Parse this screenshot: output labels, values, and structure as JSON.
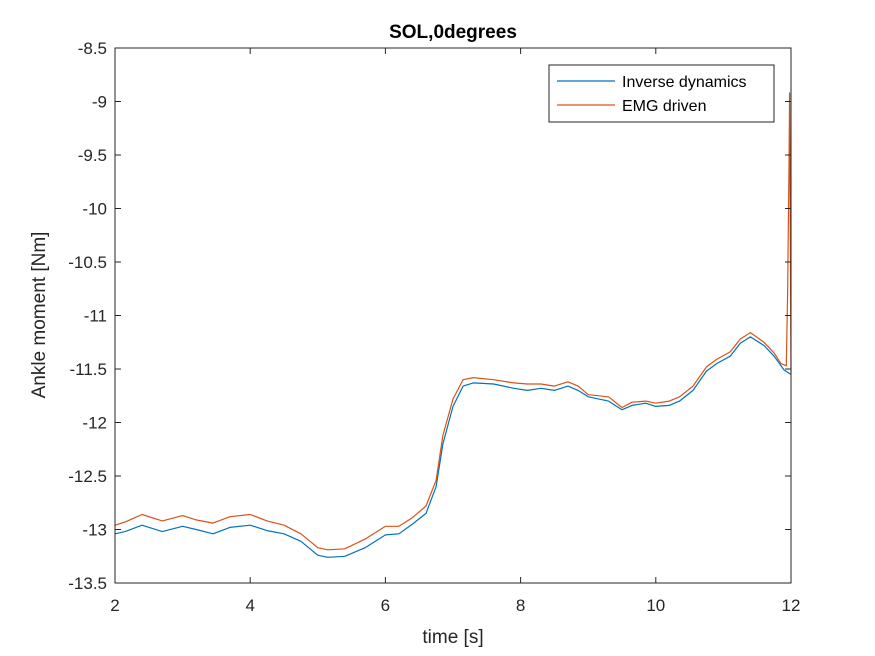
{
  "chart_data": {
    "type": "line",
    "title": "SOL,0degrees",
    "xlabel": "time  [s]",
    "ylabel": "Ankle moment [Nm]",
    "xlim": [
      2,
      12
    ],
    "ylim": [
      -13.5,
      -8.5
    ],
    "xticks": [
      "2",
      "4",
      "6",
      "8",
      "10",
      "12"
    ],
    "yticks": [
      "-8.5",
      "-9",
      "-9.5",
      "-10",
      "-10.5",
      "-11",
      "-11.5",
      "-12",
      "-12.5",
      "-13",
      "-13.5"
    ],
    "grid": false,
    "legend_position": "top-right",
    "series": [
      {
        "name": "Inverse dynamics",
        "color": "#0072BD",
        "points": [
          [
            2.0,
            -13.04
          ],
          [
            2.15,
            -13.02
          ],
          [
            2.4,
            -12.96
          ],
          [
            2.7,
            -13.02
          ],
          [
            3.0,
            -12.97
          ],
          [
            3.2,
            -13.0
          ],
          [
            3.45,
            -13.04
          ],
          [
            3.7,
            -12.98
          ],
          [
            4.0,
            -12.96
          ],
          [
            4.25,
            -13.01
          ],
          [
            4.5,
            -13.04
          ],
          [
            4.75,
            -13.11
          ],
          [
            5.0,
            -13.24
          ],
          [
            5.15,
            -13.26
          ],
          [
            5.4,
            -13.25
          ],
          [
            5.7,
            -13.17
          ],
          [
            6.0,
            -13.05
          ],
          [
            6.2,
            -13.04
          ],
          [
            6.4,
            -12.95
          ],
          [
            6.6,
            -12.85
          ],
          [
            6.75,
            -12.6
          ],
          [
            6.85,
            -12.2
          ],
          [
            7.0,
            -11.85
          ],
          [
            7.15,
            -11.66
          ],
          [
            7.3,
            -11.63
          ],
          [
            7.6,
            -11.64
          ],
          [
            7.9,
            -11.68
          ],
          [
            8.1,
            -11.7
          ],
          [
            8.3,
            -11.68
          ],
          [
            8.5,
            -11.7
          ],
          [
            8.7,
            -11.66
          ],
          [
            8.85,
            -11.7
          ],
          [
            9.0,
            -11.76
          ],
          [
            9.3,
            -11.8
          ],
          [
            9.5,
            -11.88
          ],
          [
            9.65,
            -11.84
          ],
          [
            9.85,
            -11.82
          ],
          [
            10.0,
            -11.85
          ],
          [
            10.2,
            -11.84
          ],
          [
            10.35,
            -11.8
          ],
          [
            10.55,
            -11.7
          ],
          [
            10.75,
            -11.52
          ],
          [
            10.9,
            -11.45
          ],
          [
            11.1,
            -11.38
          ],
          [
            11.25,
            -11.26
          ],
          [
            11.4,
            -11.2
          ],
          [
            11.6,
            -11.28
          ],
          [
            11.75,
            -11.38
          ],
          [
            11.9,
            -11.51
          ],
          [
            12.0,
            -11.55
          ]
        ]
      },
      {
        "name": "EMG driven",
        "color": "#D95319",
        "points": [
          [
            2.0,
            -12.96
          ],
          [
            2.15,
            -12.93
          ],
          [
            2.4,
            -12.86
          ],
          [
            2.7,
            -12.92
          ],
          [
            3.0,
            -12.87
          ],
          [
            3.2,
            -12.91
          ],
          [
            3.45,
            -12.94
          ],
          [
            3.7,
            -12.88
          ],
          [
            4.0,
            -12.86
          ],
          [
            4.25,
            -12.92
          ],
          [
            4.5,
            -12.96
          ],
          [
            4.75,
            -13.04
          ],
          [
            5.0,
            -13.17
          ],
          [
            5.15,
            -13.19
          ],
          [
            5.4,
            -13.18
          ],
          [
            5.7,
            -13.09
          ],
          [
            6.0,
            -12.97
          ],
          [
            6.2,
            -12.97
          ],
          [
            6.4,
            -12.89
          ],
          [
            6.6,
            -12.78
          ],
          [
            6.75,
            -12.54
          ],
          [
            6.85,
            -12.12
          ],
          [
            7.0,
            -11.78
          ],
          [
            7.15,
            -11.6
          ],
          [
            7.3,
            -11.58
          ],
          [
            7.6,
            -11.6
          ],
          [
            7.9,
            -11.63
          ],
          [
            8.1,
            -11.64
          ],
          [
            8.3,
            -11.64
          ],
          [
            8.5,
            -11.66
          ],
          [
            8.7,
            -11.62
          ],
          [
            8.85,
            -11.66
          ],
          [
            9.0,
            -11.74
          ],
          [
            9.3,
            -11.76
          ],
          [
            9.5,
            -11.86
          ],
          [
            9.65,
            -11.81
          ],
          [
            9.85,
            -11.8
          ],
          [
            10.0,
            -11.82
          ],
          [
            10.2,
            -11.8
          ],
          [
            10.35,
            -11.76
          ],
          [
            10.55,
            -11.66
          ],
          [
            10.75,
            -11.48
          ],
          [
            10.9,
            -11.41
          ],
          [
            11.1,
            -11.34
          ],
          [
            11.25,
            -11.22
          ],
          [
            11.4,
            -11.16
          ],
          [
            11.6,
            -11.25
          ],
          [
            11.75,
            -11.35
          ],
          [
            11.85,
            -11.45
          ],
          [
            11.93,
            -11.47
          ],
          [
            11.95,
            -10.8
          ],
          [
            11.97,
            -9.6
          ],
          [
            11.98,
            -8.92
          ],
          [
            11.99,
            -10.2
          ],
          [
            12.0,
            -11.53
          ]
        ]
      }
    ]
  }
}
